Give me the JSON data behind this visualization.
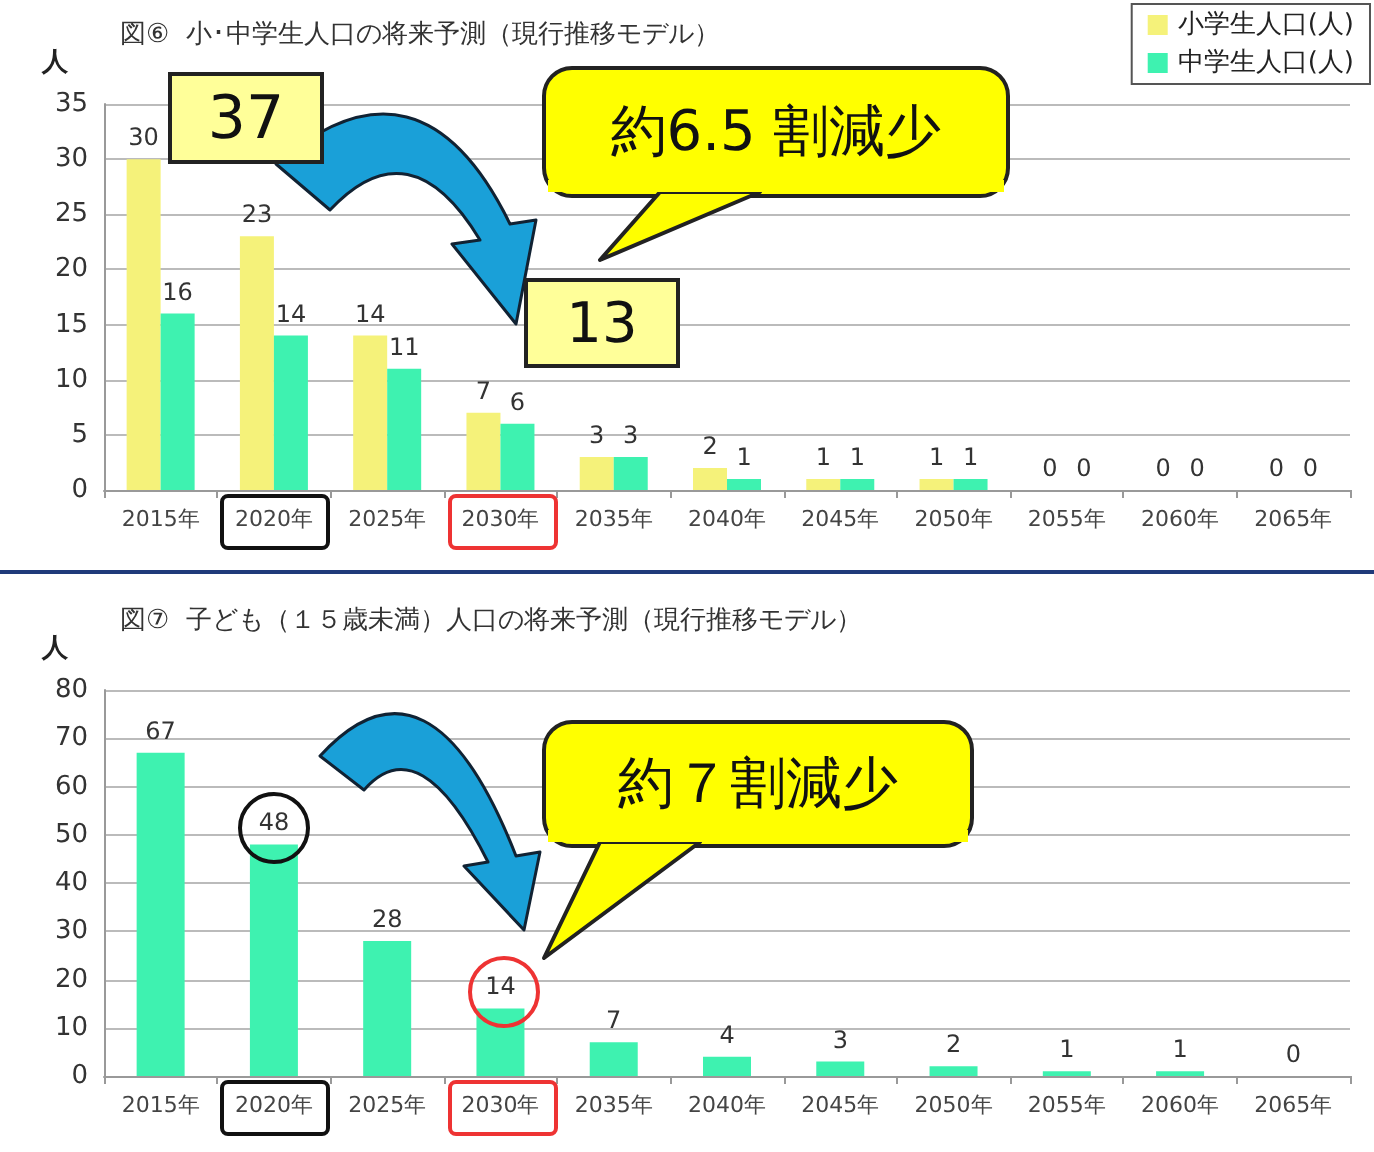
{
  "chart_data": [
    {
      "type": "bar",
      "title": "図⑥  小･中学生人口の将来予測（現行推移モデル）",
      "ylabel": "人",
      "categories": [
        "2015年",
        "2020年",
        "2025年",
        "2030年",
        "2035年",
        "2040年",
        "2045年",
        "2050年",
        "2055年",
        "2060年",
        "2065年"
      ],
      "series": [
        {
          "name": "小学生人口(人)",
          "color": "#f5f27a",
          "values": [
            30,
            23,
            14,
            7,
            3,
            2,
            1,
            1,
            0,
            0,
            0
          ]
        },
        {
          "name": "中学生人口(人)",
          "color": "#3ef2b0",
          "values": [
            16,
            14,
            11,
            6,
            3,
            1,
            1,
            1,
            0,
            0,
            0
          ]
        }
      ],
      "ylim": [
        0,
        35
      ],
      "yticks": [
        0,
        5,
        10,
        15,
        20,
        25,
        30,
        35
      ],
      "grid": "y",
      "legend": "top right",
      "data_labels": true,
      "annotations": [
        "37",
        "13",
        "約6.5 割減少"
      ]
    },
    {
      "type": "bar",
      "title": "図⑦  子ども（１５歳未満）人口の将来予測（現行推移モデル）",
      "ylabel": "人",
      "categories": [
        "2015年",
        "2020年",
        "2025年",
        "2030年",
        "2035年",
        "2040年",
        "2045年",
        "2050年",
        "2055年",
        "2060年",
        "2065年"
      ],
      "series": [
        {
          "color": "#3ef2b0",
          "values": [
            67,
            48,
            28,
            14,
            7,
            4,
            3,
            2,
            1,
            1,
            0
          ]
        }
      ],
      "ylim": [
        0,
        80
      ],
      "yticks": [
        0,
        10,
        20,
        30,
        40,
        50,
        60,
        70,
        80
      ],
      "grid": "y",
      "legend": false,
      "data_labels": true,
      "annotations": [
        "約７割減少"
      ]
    }
  ]
}
